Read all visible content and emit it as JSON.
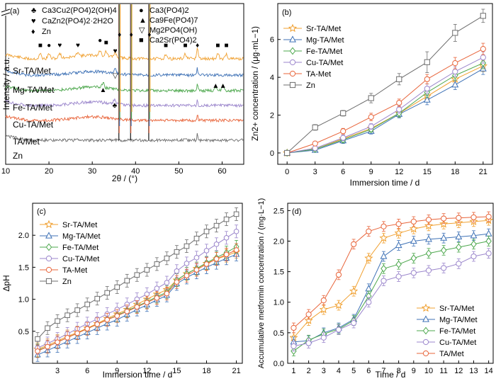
{
  "colors": {
    "Sr-TA/Met": "#F0A030",
    "Mg-TA/Met": "#3F72B6",
    "Fe-TA/Met": "#4EA84E",
    "Cu-TA/Met": "#9B86CC",
    "TA/Met": "#E8643A",
    "TA-Met": "#E8643A",
    "Zn": "#6E6E6E",
    "markers_a": "#000000"
  },
  "chart_data": [
    {
      "panel": "(a)",
      "type": "line",
      "xlabel": "2θ / (°)",
      "ylabel": "Intensity / a.u.",
      "xlim": [
        10,
        65
      ],
      "xticks": [
        10,
        20,
        30,
        40,
        50,
        60
      ],
      "series": [
        {
          "name": "Sr-TA/Met",
          "offset": 5
        },
        {
          "name": "Mg-TA/Met",
          "offset": 4
        },
        {
          "name": "Fe-TA/Met",
          "offset": 3
        },
        {
          "name": "Cu-TA/Met",
          "offset": 2
        },
        {
          "name": "TA/Met",
          "offset": 1
        },
        {
          "name": "Zn",
          "offset": 0
        }
      ],
      "zn_peaks_2theta": [
        36.3,
        39.0,
        43.2,
        54.3
      ],
      "legend": [
        {
          "symbol": "♣",
          "text": "Ca3Cu2(PO4)2(OH)4"
        },
        {
          "symbol": "♥",
          "text": "CaZn2(PO4)2·2H2O"
        },
        {
          "symbol": "♦",
          "text": "Zn"
        },
        {
          "symbol": "●",
          "text": "Ca3(PO4)2"
        },
        {
          "symbol": "▲",
          "text": "Ca9Fe(PO4)7"
        },
        {
          "symbol": "▽",
          "text": "Mg2PO4(OH)"
        },
        {
          "symbol": "■",
          "text": "Ca2Sr(PO4)2"
        }
      ],
      "annotations": [
        {
          "series": "Sr-TA/Met",
          "symbol": "■",
          "x": 18
        },
        {
          "series": "Sr-TA/Met",
          "symbol": "●",
          "x": 20
        },
        {
          "series": "Sr-TA/Met",
          "symbol": "♥",
          "x": 22.5
        },
        {
          "series": "Sr-TA/Met",
          "symbol": "♥",
          "x": 26.7
        },
        {
          "series": "Sr-TA/Met",
          "symbol": "●",
          "x": 31.8
        },
        {
          "series": "Sr-TA/Met",
          "symbol": "■",
          "x": 33.2
        },
        {
          "series": "Sr-TA/Met",
          "symbol": "♥",
          "x": 35.3
        },
        {
          "series": "Sr-TA/Met",
          "symbol": "♦",
          "x": 36.3
        },
        {
          "series": "Sr-TA/Met",
          "symbol": "♦",
          "x": 39.0
        },
        {
          "series": "Sr-TA/Met",
          "symbol": "♦",
          "x": 43.2
        },
        {
          "series": "Sr-TA/Met",
          "symbol": "■",
          "x": 47
        },
        {
          "series": "Sr-TA/Met",
          "symbol": "■",
          "x": 51.5
        },
        {
          "series": "Sr-TA/Met",
          "symbol": "♦",
          "x": 54.3
        },
        {
          "series": "Sr-TA/Met",
          "symbol": "■",
          "x": 59
        },
        {
          "series": "Sr-TA/Met",
          "symbol": "■",
          "x": 61
        },
        {
          "series": "Mg-TA/Met",
          "symbol": "▽",
          "x": 35.3
        },
        {
          "series": "Fe-TA/Met",
          "symbol": "▲",
          "x": 32.5
        },
        {
          "series": "Fe-TA/Met",
          "symbol": "▲",
          "x": 58.5
        },
        {
          "series": "Fe-TA/Met",
          "symbol": "▲",
          "x": 60.2
        },
        {
          "series": "Cu-TA/Met",
          "symbol": "♣",
          "x": 35.2
        }
      ]
    },
    {
      "panel": "(b)",
      "type": "line",
      "xlabel": "Immersion time / d",
      "ylabel": "Zn2+ concentration / (μg·mL−1)",
      "xlim": [
        -1,
        22
      ],
      "ylim": [
        -0.6,
        7.9
      ],
      "xticks": [
        0,
        3,
        6,
        9,
        12,
        15,
        18,
        21
      ],
      "yticks": [
        0,
        2,
        4,
        6
      ],
      "legend_position": "top-left",
      "x": [
        0,
        3,
        6,
        9,
        12,
        15,
        18,
        21
      ],
      "series": [
        {
          "name": "Sr-TA/Met",
          "marker": "star",
          "values": [
            0,
            0.2,
            0.75,
            1.3,
            2.1,
            3.0,
            3.9,
            4.6
          ],
          "errors": [
            0.05,
            0.1,
            0.15,
            0.15,
            0.2,
            0.25,
            0.25,
            0.3
          ]
        },
        {
          "name": "Mg-TA/Met",
          "marker": "triangle",
          "values": [
            0,
            0.15,
            0.65,
            1.15,
            2.05,
            2.8,
            3.6,
            4.45
          ],
          "errors": [
            0.05,
            0.1,
            0.15,
            0.15,
            0.2,
            0.25,
            0.25,
            0.3
          ]
        },
        {
          "name": "Fe-TA/Met",
          "marker": "diamond",
          "values": [
            0,
            0.2,
            0.7,
            1.25,
            2.1,
            3.2,
            4.1,
            4.75
          ],
          "errors": [
            0.05,
            0.1,
            0.15,
            0.15,
            0.2,
            0.25,
            0.25,
            0.3
          ]
        },
        {
          "name": "Cu-TA/Met",
          "marker": "circle",
          "values": [
            0,
            0.25,
            0.8,
            1.4,
            2.3,
            3.4,
            4.3,
            5.05
          ],
          "errors": [
            0.05,
            0.1,
            0.15,
            0.15,
            0.2,
            0.25,
            0.25,
            0.3
          ]
        },
        {
          "name": "TA-Met",
          "marker": "circle",
          "values": [
            0,
            0.5,
            1.15,
            1.9,
            2.65,
            3.9,
            4.75,
            5.5
          ],
          "errors": [
            0.05,
            0.1,
            0.15,
            0.2,
            0.2,
            0.25,
            0.3,
            0.3
          ]
        },
        {
          "name": "Zn",
          "marker": "square",
          "values": [
            0,
            1.35,
            2.1,
            2.9,
            3.9,
            4.8,
            6.35,
            7.25
          ],
          "errors": [
            0.05,
            0.15,
            0.15,
            0.25,
            0.3,
            0.55,
            0.45,
            0.35
          ]
        }
      ]
    },
    {
      "panel": "(c)",
      "type": "line",
      "xlabel": "Immersion time / d",
      "ylabel": "ΔpH",
      "xlim": [
        0.5,
        21.6
      ],
      "ylim": [
        0,
        2.5
      ],
      "xticks": [
        3,
        6,
        9,
        12,
        15,
        18,
        21
      ],
      "yticks": [
        0.5,
        1.0,
        1.5,
        2.0
      ],
      "legend_position": "top-left",
      "x": [
        1,
        2,
        3,
        4,
        5,
        6,
        7,
        8,
        9,
        10,
        11,
        12,
        13,
        14,
        15,
        16,
        17,
        18,
        19,
        20,
        21
      ],
      "series": [
        {
          "name": "Sr-TA/Met",
          "marker": "star",
          "values": [
            0.22,
            0.28,
            0.35,
            0.42,
            0.48,
            0.55,
            0.62,
            0.7,
            0.77,
            0.84,
            0.92,
            1.0,
            1.08,
            1.15,
            1.3,
            1.4,
            1.48,
            1.56,
            1.63,
            1.68,
            1.74
          ],
          "error": 0.1
        },
        {
          "name": "Mg-TA/Met",
          "marker": "triangle",
          "values": [
            0.13,
            0.2,
            0.27,
            0.34,
            0.41,
            0.48,
            0.55,
            0.62,
            0.68,
            0.76,
            0.84,
            0.91,
            0.99,
            1.06,
            1.24,
            1.34,
            1.42,
            1.5,
            1.57,
            1.64,
            1.7
          ],
          "error": 0.1
        },
        {
          "name": "Fe-TA/Met",
          "marker": "diamond",
          "values": [
            0.2,
            0.26,
            0.33,
            0.4,
            0.47,
            0.54,
            0.61,
            0.68,
            0.75,
            0.82,
            0.89,
            0.96,
            1.04,
            1.11,
            1.3,
            1.4,
            1.48,
            1.57,
            1.65,
            1.73,
            1.82
          ],
          "error": 0.1
        },
        {
          "name": "Cu-TA/Met",
          "marker": "circle",
          "values": [
            0.24,
            0.31,
            0.38,
            0.46,
            0.54,
            0.62,
            0.69,
            0.77,
            0.84,
            0.92,
            1.0,
            1.08,
            1.17,
            1.26,
            1.44,
            1.56,
            1.65,
            1.76,
            1.86,
            1.96,
            2.06
          ],
          "error": 0.1
        },
        {
          "name": "TA-Met",
          "marker": "circle",
          "values": [
            0.19,
            0.26,
            0.33,
            0.4,
            0.47,
            0.54,
            0.61,
            0.68,
            0.74,
            0.81,
            0.88,
            0.95,
            1.02,
            1.09,
            1.27,
            1.37,
            1.46,
            1.55,
            1.63,
            1.7,
            1.77
          ],
          "error": 0.1
        },
        {
          "name": "Zn",
          "marker": "square",
          "values": [
            0.38,
            0.55,
            0.66,
            0.75,
            0.83,
            0.92,
            1.01,
            1.1,
            1.19,
            1.29,
            1.38,
            1.46,
            1.55,
            1.64,
            1.74,
            1.83,
            1.95,
            2.06,
            2.15,
            2.25,
            2.33
          ],
          "error": 0.1
        }
      ]
    },
    {
      "panel": "(d)",
      "type": "line",
      "xlabel": "Time / d",
      "ylabel": "Accumulative metformin concentration / (mg·L−1)",
      "xlim": [
        0.6,
        14.3
      ],
      "ylim": [
        0,
        2.62
      ],
      "xticks": [
        1,
        2,
        3,
        4,
        5,
        6,
        7,
        8,
        9,
        10,
        11,
        12,
        13,
        14
      ],
      "yticks": [
        0,
        0.5,
        1.0,
        1.5,
        2.0,
        2.5
      ],
      "legend_position": "bottom-right",
      "x": [
        1,
        2,
        3,
        4,
        5,
        6,
        7,
        8,
        9,
        10,
        11,
        12,
        13,
        14
      ],
      "series": [
        {
          "name": "Sr-TA/Met",
          "marker": "star",
          "values": [
            0.42,
            0.7,
            0.88,
            0.95,
            1.18,
            1.72,
            2.05,
            2.13,
            2.2,
            2.25,
            2.28,
            2.3,
            2.32,
            2.34
          ],
          "error": 0.08
        },
        {
          "name": "Mg-TA/Met",
          "marker": "triangle",
          "values": [
            0.35,
            0.37,
            0.5,
            0.58,
            0.72,
            1.22,
            1.75,
            1.93,
            2.0,
            2.03,
            2.05,
            2.07,
            2.09,
            2.12
          ],
          "error": 0.08
        },
        {
          "name": "Fe-TA/Met",
          "marker": "diamond",
          "values": [
            0.2,
            0.38,
            0.48,
            0.56,
            0.7,
            1.1,
            1.55,
            1.62,
            1.72,
            1.8,
            1.85,
            1.9,
            1.95,
            2.0
          ],
          "error": 0.08
        },
        {
          "name": "Cu-TA/Met",
          "marker": "circle",
          "values": [
            0.28,
            0.33,
            0.42,
            0.55,
            0.66,
            1.0,
            1.35,
            1.42,
            1.48,
            1.52,
            1.56,
            1.63,
            1.75,
            1.8
          ],
          "error": 0.08
        },
        {
          "name": "TA/Met",
          "marker": "circle",
          "values": [
            0.58,
            0.8,
            1.03,
            1.45,
            1.95,
            2.16,
            2.24,
            2.28,
            2.32,
            2.35,
            2.37,
            2.38,
            2.39,
            2.4
          ],
          "error": 0.08
        }
      ]
    }
  ]
}
